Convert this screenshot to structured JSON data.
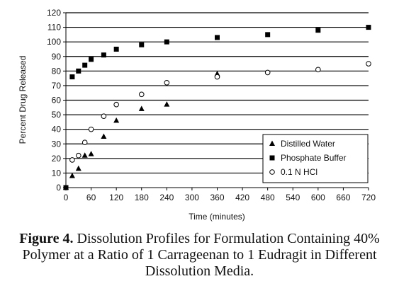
{
  "chart_data": {
    "type": "scatter",
    "xlabel": "Time (minutes)",
    "ylabel": "Percent Drug Released",
    "xlim": [
      0,
      720
    ],
    "ylim": [
      0,
      120
    ],
    "xticks": [
      0,
      60,
      120,
      180,
      240,
      300,
      360,
      420,
      480,
      540,
      600,
      660,
      720
    ],
    "yticks": [
      0,
      10,
      20,
      30,
      40,
      50,
      60,
      70,
      80,
      90,
      100,
      110,
      120
    ],
    "grid": "horizontal",
    "legend_position": "bottom-right",
    "series": [
      {
        "name": "Distilled Water",
        "marker": "triangle",
        "x": [
          0,
          15,
          30,
          45,
          60,
          90,
          120,
          180,
          240,
          360
        ],
        "y": [
          0,
          8,
          13,
          22,
          23,
          35,
          46,
          54,
          57,
          78
        ]
      },
      {
        "name": "Phosphate Buffer",
        "marker": "square",
        "x": [
          0,
          15,
          30,
          45,
          60,
          90,
          120,
          180,
          240,
          360,
          480,
          600,
          720
        ],
        "y": [
          0,
          76,
          80,
          84,
          88,
          91,
          95,
          98,
          100,
          103,
          105,
          108,
          110
        ]
      },
      {
        "name": "0.1 N HCl",
        "marker": "circle",
        "x": [
          15,
          30,
          45,
          60,
          90,
          120,
          180,
          240,
          360,
          480,
          600,
          720
        ],
        "y": [
          19,
          22,
          31,
          40,
          49,
          57,
          64,
          72,
          76,
          79,
          81,
          85
        ]
      }
    ]
  },
  "caption": {
    "label": "Figure 4.",
    "text": " Dissolution Profiles for Formulation Containing 40% Polymer at a Ratio of 1 Carrageenan to 1 Eudragit in Different Dissolution Media."
  }
}
